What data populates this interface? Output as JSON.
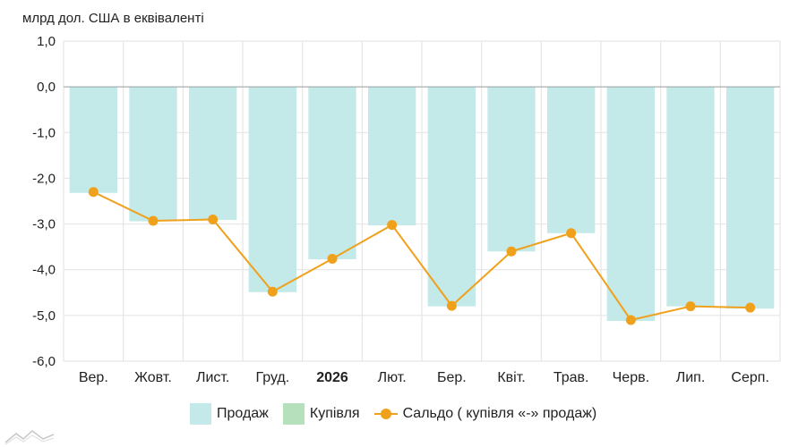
{
  "unit_label": "млрд дол. США в еквіваленті",
  "colors": {
    "sales": "#c3e9e9",
    "purchase": "#b6e0bb",
    "balance": "#f0a11b",
    "grid": "#e2e2e2",
    "zero": "#9aa0a0"
  },
  "legend": {
    "sales": "Продаж",
    "purchase": "Купівля",
    "balance": "Сальдо ( купівля «-» продаж)"
  },
  "chart_data": {
    "type": "bar",
    "categories": [
      "Вер.",
      "Жовт.",
      "Лист.",
      "Груд.",
      "2026",
      "Лют.",
      "Бер.",
      "Квіт.",
      "Трав.",
      "Черв.",
      "Лип.",
      "Серп."
    ],
    "bold_categories": [
      "2026"
    ],
    "yticks": [
      "1,0",
      "0,0",
      "-1,0",
      "-2,0",
      "-3,0",
      "-4,0",
      "-5,0",
      "-6,0"
    ],
    "ylim": [
      -6,
      1
    ],
    "grid": true,
    "legend_position": "bottom",
    "series": [
      {
        "name": "Продаж",
        "type": "bar",
        "values": [
          -2.32,
          -2.94,
          -2.91,
          -4.49,
          -3.77,
          -3.03,
          -4.8,
          -3.6,
          -3.2,
          -5.12,
          -4.8,
          -4.85
        ]
      },
      {
        "name": "Купівля",
        "type": "bar",
        "values": [
          0,
          0,
          0,
          0,
          0,
          0,
          0,
          0,
          0,
          0,
          0,
          0
        ]
      },
      {
        "name": "Сальдо ( купівля «-» продаж)",
        "type": "line",
        "values": [
          -2.3,
          -2.93,
          -2.9,
          -4.48,
          -3.76,
          -3.02,
          -4.79,
          -3.6,
          -3.2,
          -5.1,
          -4.8,
          -4.83
        ]
      }
    ]
  }
}
